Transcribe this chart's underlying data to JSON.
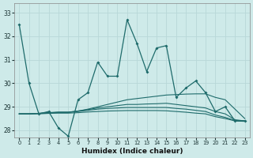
{
  "xlabel": "Humidex (Indice chaleur)",
  "bg_color": "#ceeae9",
  "line_color": "#1e6b6b",
  "grid_color": "#b8d8d8",
  "xlim": [
    -0.5,
    23.5
  ],
  "ylim": [
    27.7,
    33.4
  ],
  "yticks": [
    28,
    29,
    30,
    31,
    32,
    33
  ],
  "xticks": [
    0,
    1,
    2,
    3,
    4,
    5,
    6,
    7,
    8,
    9,
    10,
    11,
    12,
    13,
    14,
    15,
    16,
    17,
    18,
    19,
    20,
    21,
    22,
    23
  ],
  "main_line": [
    32.5,
    30.0,
    28.7,
    28.8,
    28.1,
    27.75,
    29.3,
    29.6,
    30.9,
    30.3,
    30.3,
    32.7,
    31.7,
    30.5,
    31.5,
    31.6,
    29.4,
    29.8,
    30.1,
    29.6,
    28.8,
    29.0,
    28.4,
    28.4
  ],
  "trend_top": [
    28.7,
    28.7,
    28.72,
    28.75,
    28.77,
    28.77,
    28.82,
    28.9,
    29.0,
    29.1,
    29.2,
    29.3,
    29.35,
    29.4,
    29.45,
    29.5,
    29.52,
    29.54,
    29.55,
    29.55,
    29.4,
    29.3,
    28.9,
    28.5
  ],
  "trend_mid1": [
    28.7,
    28.7,
    28.72,
    28.75,
    28.77,
    28.77,
    28.82,
    28.88,
    28.95,
    29.0,
    29.05,
    29.1,
    29.1,
    29.12,
    29.13,
    29.15,
    29.1,
    29.05,
    29.0,
    28.95,
    28.8,
    28.7,
    28.45,
    28.4
  ],
  "trend_mid2": [
    28.7,
    28.7,
    28.72,
    28.74,
    28.76,
    28.76,
    28.8,
    28.85,
    28.9,
    28.93,
    28.95,
    28.97,
    28.97,
    28.97,
    28.97,
    28.97,
    28.93,
    28.9,
    28.85,
    28.8,
    28.65,
    28.55,
    28.42,
    28.4
  ],
  "trend_bot": [
    28.7,
    28.7,
    28.7,
    28.72,
    28.73,
    28.73,
    28.75,
    28.78,
    28.8,
    28.82,
    28.83,
    28.84,
    28.84,
    28.84,
    28.84,
    28.83,
    28.8,
    28.77,
    28.73,
    28.7,
    28.58,
    28.5,
    28.4,
    28.38
  ]
}
